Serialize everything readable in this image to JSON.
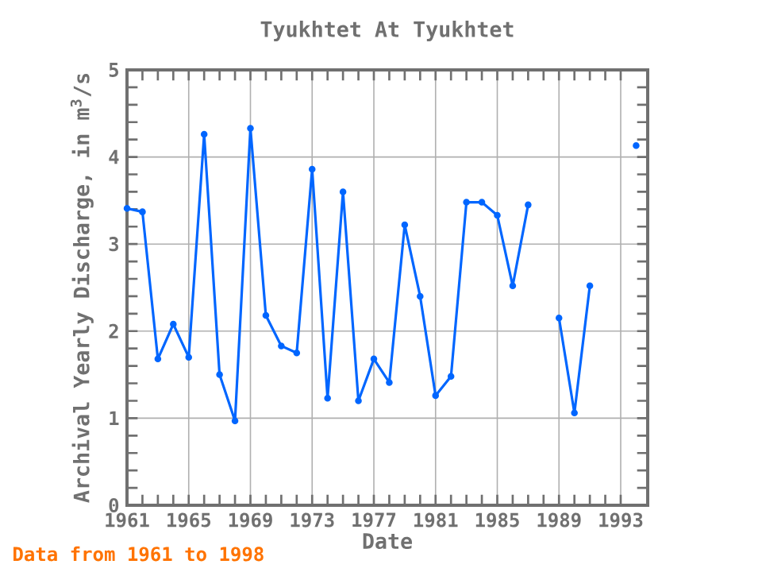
{
  "chart_data": {
    "type": "line",
    "title": "Tyukhtet At Tyukhtet",
    "xlabel": "Date",
    "ylabel": "Archival Yearly Discharge, in m$^{3}$/s",
    "x": [
      1961,
      1962,
      1963,
      1964,
      1965,
      1966,
      1967,
      1968,
      1969,
      1970,
      1971,
      1972,
      1973,
      1974,
      1975,
      1976,
      1977,
      1978,
      1979,
      1980,
      1981,
      1982,
      1983,
      1984,
      1985,
      1986,
      1987,
      1988,
      1989,
      1990,
      1991,
      1992,
      1993,
      1994
    ],
    "series": [
      {
        "color": "#0066ff",
        "values": [
          3.41,
          3.37,
          1.68,
          2.08,
          1.7,
          4.26,
          1.5,
          0.97,
          4.33,
          2.18,
          1.83,
          1.75,
          3.86,
          1.23,
          3.6,
          1.2,
          1.68,
          1.41,
          3.22,
          2.4,
          1.26,
          1.48,
          3.48,
          3.48,
          3.33,
          2.52,
          3.45,
          null,
          2.15,
          1.06,
          2.52,
          null,
          null,
          4.13
        ]
      }
    ],
    "xlim": [
      1961,
      1994.75
    ],
    "ylim": [
      0,
      5
    ],
    "xticks": [
      1961,
      1965,
      1969,
      1973,
      1977,
      1981,
      1985,
      1989,
      1993
    ],
    "yticks": [
      0,
      1,
      2,
      3,
      4,
      5
    ],
    "grid": true,
    "marker": "circle",
    "line_style": "solid",
    "annotations": [
      "Data from 1961 to 1998"
    ]
  }
}
